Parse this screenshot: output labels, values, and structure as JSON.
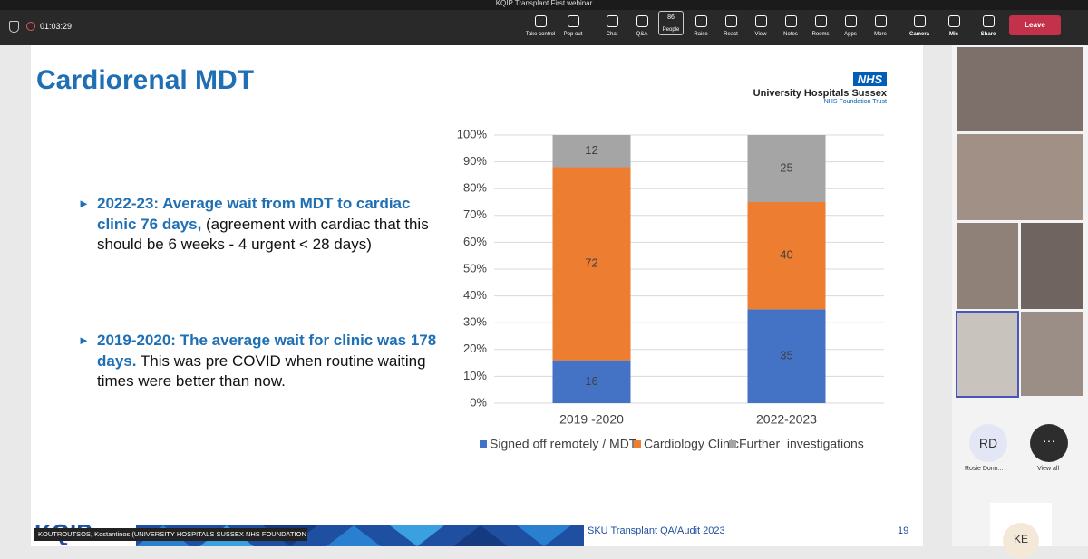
{
  "window": {
    "title": "KQIP Transplant First webinar",
    "timer": "01:03:29"
  },
  "toolbar": {
    "buttons": [
      "Take control",
      "Pop out",
      "Chat",
      "Q&A",
      "People",
      "Raise",
      "React",
      "View",
      "Notes",
      "Rooms",
      "Apps",
      "More",
      "Camera",
      "Mic",
      "Share"
    ],
    "people_count": "86",
    "leave": "Leave"
  },
  "slide": {
    "title": "Cardiorenal MDT",
    "logo": {
      "badge": "NHS",
      "org": "University Hospitals Sussex",
      "sub": "NHS Foundation Trust"
    },
    "bullets": [
      {
        "bold": "2022-23: Average wait from MDT to cardiac clinic 76 days,",
        "normal": " (agreement with cardiac that this should be 6 weeks - 4 urgent < 28 days)"
      },
      {
        "bold": "2019-2020: The average wait for clinic was 178 days.",
        "normal": " This was pre COVID when routine waiting times were better than now."
      }
    ],
    "footer": {
      "logo": "KQIP",
      "text": "SKU Transplant QA/Audit 2023",
      "page": "19"
    },
    "presenter": "KOUTROUTSOS, Kostantinos (UNIVERSITY HOSPITALS SUSSEX NHS FOUNDATION TRUST)"
  },
  "chart_data": {
    "type": "stacked_bar",
    "categories": [
      "2019 -2020",
      "2022-2023"
    ],
    "series": [
      {
        "name": "Signed off remotely / MDT",
        "color": "#4472c4",
        "values": [
          16,
          35
        ]
      },
      {
        "name": "Cardiology Clinic",
        "color": "#ed7d31",
        "values": [
          72,
          40
        ]
      },
      {
        "name": "Further  investigations",
        "color": "#a5a5a5",
        "values": [
          12,
          25
        ]
      }
    ],
    "ylim": [
      0,
      100
    ],
    "yticks": [
      {
        "value": 0,
        "label": "0%"
      },
      {
        "value": 10,
        "label": "10%"
      },
      {
        "value": 20,
        "label": "20%"
      },
      {
        "value": 30,
        "label": "30%"
      },
      {
        "value": 40,
        "label": "40%"
      },
      {
        "value": 50,
        "label": "50%"
      },
      {
        "value": 60,
        "label": "60%"
      },
      {
        "value": 70,
        "label": "70%"
      },
      {
        "value": 80,
        "label": "80%"
      },
      {
        "value": 90,
        "label": "90%"
      },
      {
        "value": 100,
        "label": "100%"
      }
    ],
    "grid": true,
    "legend": "bottom"
  },
  "participants": {
    "tile_initials": "RD",
    "tile_name": "Rosie Donn...",
    "view_all": "View all",
    "bottom_initials": "KE"
  }
}
